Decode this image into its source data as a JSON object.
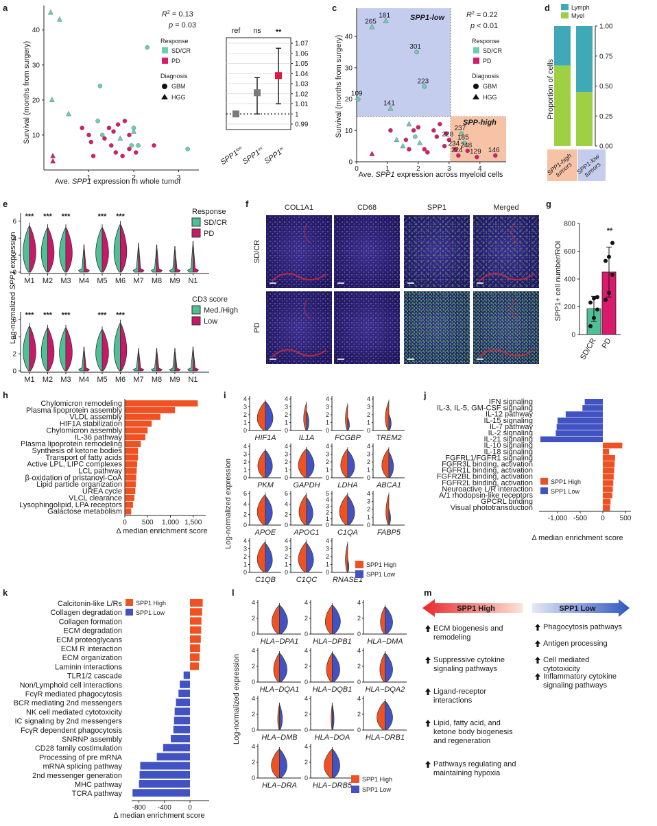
{
  "colors": {
    "sdcr": "#6ccfae",
    "pd": "#d81b6b",
    "high": "#f05123",
    "low": "#4153c3",
    "lymph": "#3fa9b8",
    "myel": "#9fcf42",
    "low_shade": "#c5cdee",
    "high_shade": "#f6c3a6",
    "violin_green": "#4fbf96",
    "violin_pink": "#c8186a"
  },
  "panel_a": {
    "letter": "a",
    "xlabel_pre": "Ave. ",
    "xlabel_gene": "SPP1",
    "xlabel_post": " expression in whole tumor",
    "ylabel": "Survival (months from surgery)",
    "r2": "R",
    "r2_val": " = 0.13",
    "p": "p",
    "p_val": " = 0.03",
    "xticks": [
      "1",
      "2",
      "3"
    ],
    "yticks": [
      "10",
      "20",
      "30",
      "40"
    ],
    "legend_response": "Response",
    "legend_sdcr": "SD/CR",
    "legend_pd": "PD",
    "legend_diagnosis": "Diagnosis",
    "legend_gbm": "GBM",
    "legend_hgg": "HGG",
    "points": [
      {
        "x": 0.15,
        "y": 45,
        "c": "sdcr",
        "s": "tri"
      },
      {
        "x": 0.35,
        "y": 43,
        "c": "sdcr",
        "s": "tri"
      },
      {
        "x": 0.18,
        "y": 20,
        "c": "sdcr",
        "s": "tri"
      },
      {
        "x": 0.55,
        "y": 16,
        "c": "sdcr",
        "s": "tri"
      },
      {
        "x": 0.2,
        "y": 4,
        "c": "pd",
        "s": "tri"
      },
      {
        "x": 0.2,
        "y": 2.5,
        "c": "pd",
        "s": "tri"
      },
      {
        "x": 0.85,
        "y": 12,
        "c": "pd",
        "s": "dot"
      },
      {
        "x": 1.0,
        "y": 10,
        "c": "pd",
        "s": "dot"
      },
      {
        "x": 1.05,
        "y": 8,
        "c": "pd",
        "s": "dot"
      },
      {
        "x": 1.1,
        "y": 4,
        "c": "pd",
        "s": "dot"
      },
      {
        "x": 1.2,
        "y": 14,
        "c": "sdcr",
        "s": "dot"
      },
      {
        "x": 1.25,
        "y": 24,
        "c": "sdcr",
        "s": "dot"
      },
      {
        "x": 1.3,
        "y": 10,
        "c": "sdcr",
        "s": "dot"
      },
      {
        "x": 1.35,
        "y": 9,
        "c": "pd",
        "s": "dot"
      },
      {
        "x": 1.45,
        "y": 12,
        "c": "pd",
        "s": "dot"
      },
      {
        "x": 1.5,
        "y": 7,
        "c": "pd",
        "s": "dot"
      },
      {
        "x": 1.55,
        "y": 11,
        "c": "pd",
        "s": "dot"
      },
      {
        "x": 1.6,
        "y": 5,
        "c": "pd",
        "s": "dot"
      },
      {
        "x": 1.65,
        "y": 13,
        "c": "pd",
        "s": "dot"
      },
      {
        "x": 1.7,
        "y": 9,
        "c": "sdcr",
        "s": "tri"
      },
      {
        "x": 1.75,
        "y": 4,
        "c": "pd",
        "s": "dot"
      },
      {
        "x": 1.8,
        "y": 14,
        "c": "pd",
        "s": "dot"
      },
      {
        "x": 1.9,
        "y": 10,
        "c": "pd",
        "s": "dot"
      },
      {
        "x": 1.95,
        "y": 7,
        "c": "sdcr",
        "s": "dot"
      },
      {
        "x": 2.0,
        "y": 11,
        "c": "sdcr",
        "s": "tri"
      },
      {
        "x": 2.05,
        "y": 5,
        "c": "pd",
        "s": "dot"
      },
      {
        "x": 2.1,
        "y": 7,
        "c": "sdcr",
        "s": "dot"
      },
      {
        "x": 2.3,
        "y": 35,
        "c": "sdcr",
        "s": "dot"
      },
      {
        "x": 2.45,
        "y": 7,
        "c": "pd",
        "s": "dot"
      },
      {
        "x": 1.9,
        "y": 6,
        "c": "pd",
        "s": "dot"
      },
      {
        "x": 3.2,
        "y": 6,
        "c": "sdcr",
        "s": "dot"
      },
      {
        "x": 2.0,
        "y": 12,
        "c": "sdcr",
        "s": "dot"
      }
    ]
  },
  "panel_a_or": {
    "labels": [
      "ref",
      "ns",
      "**"
    ],
    "yticks": [
      "0.99",
      "1",
      "1.01",
      "1.02",
      "1.03",
      "1.04",
      "1.05",
      "1.06",
      "1.07"
    ],
    "xlab1": "SPP1",
    "xlab1_sup": "low",
    "xlab2": "SPP1",
    "xlab2_sup": "int",
    "xlab3": "SPP1",
    "xlab3_sup": "hi",
    "estimates": [
      {
        "v": 1.0,
        "lo": 1.0,
        "hi": 1.0,
        "color": "#7a7a7a"
      },
      {
        "v": 1.021,
        "lo": 1.0,
        "hi": 1.036,
        "color": "#7a7a7a"
      },
      {
        "v": 1.038,
        "lo": 1.01,
        "hi": 1.065,
        "color": "#e0193d"
      }
    ]
  },
  "panel_c": {
    "letter": "c",
    "xlabel_pre": "Ave. ",
    "xlabel_gene": "SPP1",
    "xlabel_post": " expression across myeloid cells",
    "ylabel": "Survival (months from surgery)",
    "r2": "R",
    "r2_val": " = 0.22",
    "p": "p",
    "p_val": " < 0.01",
    "low_label": "SPP1-low",
    "high_label": "SPP-high",
    "xticks": [
      "0",
      "1",
      "2",
      "3",
      "4"
    ],
    "yticks": [
      "0",
      "10",
      "20",
      "30",
      "40"
    ],
    "legend_response": "Response",
    "legend_sdcr": "SD/CR",
    "legend_pd": "PD",
    "legend_diagnosis": "Diagnosis",
    "legend_gbm": "GBM",
    "legend_hgg": "HGG",
    "labeled": [
      {
        "x": 0.05,
        "y": 20,
        "t": "109",
        "c": "sdcr",
        "s": "dot"
      },
      {
        "x": 0.95,
        "y": 45,
        "t": "181",
        "c": "sdcr",
        "s": "tri"
      },
      {
        "x": 0.5,
        "y": 43,
        "t": "265",
        "c": "sdcr",
        "s": "tri"
      },
      {
        "x": 1.95,
        "y": 35,
        "t": "301",
        "c": "sdcr",
        "s": "dot"
      },
      {
        "x": 2.2,
        "y": 24,
        "t": "223",
        "c": "sdcr",
        "s": "dot"
      },
      {
        "x": 1.1,
        "y": 17,
        "t": "141",
        "c": "sdcr",
        "s": "tri"
      },
      {
        "x": 3.4,
        "y": 9,
        "t": "237",
        "c": "sdcr",
        "s": "dot"
      },
      {
        "x": 3.5,
        "y": 6,
        "t": "185",
        "c": "sdcr",
        "s": "dot"
      },
      {
        "x": 3.0,
        "y": 7,
        "t": "228",
        "c": "pd",
        "s": "dot"
      },
      {
        "x": 3.2,
        "y": 4,
        "t": "234",
        "c": "pd",
        "s": "dot"
      },
      {
        "x": 3.6,
        "y": 3.5,
        "t": "248",
        "c": "pd",
        "s": "dot"
      },
      {
        "x": 3.3,
        "y": 2,
        "t": "224",
        "c": "pd",
        "s": "dot"
      },
      {
        "x": 3.9,
        "y": 1.5,
        "t": "129",
        "c": "pd",
        "s": "dot"
      },
      {
        "x": 4.5,
        "y": 2,
        "t": "146",
        "c": "pd",
        "s": "dot"
      }
    ],
    "points": [
      {
        "x": 0.5,
        "y": 2.5,
        "c": "pd",
        "s": "tri"
      },
      {
        "x": 1.1,
        "y": 10,
        "c": "pd",
        "s": "dot"
      },
      {
        "x": 1.3,
        "y": 7,
        "c": "sdcr",
        "s": "tri"
      },
      {
        "x": 1.5,
        "y": 5,
        "c": "sdcr",
        "s": "tri"
      },
      {
        "x": 1.6,
        "y": 7,
        "c": "pd",
        "s": "dot"
      },
      {
        "x": 1.7,
        "y": 4,
        "c": "pd",
        "s": "dot"
      },
      {
        "x": 1.85,
        "y": 10,
        "c": "pd",
        "s": "dot"
      },
      {
        "x": 1.9,
        "y": 8,
        "c": "sdcr",
        "s": "dot"
      },
      {
        "x": 2.0,
        "y": 11,
        "c": "pd",
        "s": "dot"
      },
      {
        "x": 2.05,
        "y": 6,
        "c": "sdcr",
        "s": "tri"
      },
      {
        "x": 2.2,
        "y": 4,
        "c": "pd",
        "s": "dot"
      },
      {
        "x": 2.3,
        "y": 3,
        "c": "pd",
        "s": "dot"
      },
      {
        "x": 2.5,
        "y": 10,
        "c": "pd",
        "s": "dot"
      },
      {
        "x": 2.6,
        "y": 8,
        "c": "pd",
        "s": "dot"
      },
      {
        "x": 2.7,
        "y": 12,
        "c": "pd",
        "s": "dot"
      },
      {
        "x": 2.9,
        "y": 9,
        "c": "pd",
        "s": "dot"
      },
      {
        "x": 2.85,
        "y": 5,
        "c": "pd",
        "s": "dot"
      },
      {
        "x": 1.7,
        "y": 12,
        "c": "sdcr",
        "s": "tri"
      }
    ]
  },
  "panel_d": {
    "letter": "d",
    "ylabel": "Proportion of cells",
    "legend_lymph": "Lymph",
    "legend_myel": "Myel",
    "yticks": [
      "0.00",
      "0.25",
      "0.50",
      "0.75",
      "1.00"
    ],
    "cat1": "SPP1-high",
    "cat1b": "tumors",
    "cat2": "SPP1-low",
    "cat2b": "tumors",
    "myel_fraction": [
      0.67,
      0.45
    ]
  },
  "panel_e": {
    "letter": "e",
    "ylabel_pre": "Log-normalized ",
    "ylabel_gene": "SPP1",
    "ylabel_post": " expression",
    "clusters": [
      "M1",
      "M2",
      "M3",
      "M4",
      "M5",
      "M6",
      "M7",
      "M8",
      "M9",
      "N1"
    ],
    "yticks": [
      "0",
      "2",
      "4",
      "6"
    ],
    "legend1_title": "Response",
    "legend1_a": "SD/CR",
    "legend1_b": "PD",
    "legend2_title": "CD3 score",
    "legend2_a": "Med./High",
    "legend2_b": "Low",
    "stars": [
      "***",
      "***",
      "***",
      "",
      "***",
      "***",
      "",
      "",
      "",
      ""
    ],
    "heights_top": [
      5.8,
      5.6,
      5.6,
      3.2,
      5.6,
      6.0,
      3.4,
      3.2,
      3.0,
      3.6
    ],
    "heights_bottom": [
      5.6,
      5.4,
      5.4,
      2.8,
      5.2,
      6.0,
      2.6,
      2.6,
      2.6,
      2.8
    ]
  },
  "panel_f": {
    "letter": "f",
    "columns": [
      "COL1A1",
      "CD68",
      "SPP1",
      "Merged"
    ],
    "rows": [
      "SD/CR",
      "PD"
    ]
  },
  "panel_g": {
    "letter": "g",
    "ylabel": "SPP1+ cell number/ROI",
    "yticks": [
      "0",
      "200",
      "400",
      "600",
      "800"
    ],
    "cats": [
      "SD/CR",
      "PD"
    ],
    "values": [
      185,
      450
    ],
    "err": [
      90,
      180
    ],
    "sig": "**"
  },
  "panel_h": {
    "letter": "h",
    "xlabel": "Δ median enrichment score",
    "xticks": [
      "0",
      "500",
      "1,000",
      "1,500"
    ],
    "items": [
      {
        "label": "Chylomicron remodeling",
        "v": 1600
      },
      {
        "label": "Plasma lipoprotein assembly",
        "v": 1100
      },
      {
        "label": "VLDL assembly",
        "v": 780
      },
      {
        "label": "HIF1A stabilization",
        "v": 590
      },
      {
        "label": "Chylomicron assembly",
        "v": 500
      },
      {
        "label": "IL-36 pathway",
        "v": 450
      },
      {
        "label": "Plasma lipoprotein remodeling",
        "v": 350
      },
      {
        "label": "Synthesis of ketone bodies",
        "v": 290
      },
      {
        "label": "Transport of fatty acids",
        "v": 290
      },
      {
        "label": "Active LPL, LIPC complexes",
        "v": 270
      },
      {
        "label": "LCL pathway",
        "v": 260
      },
      {
        "label": "β-oxidation of pristanoyl-CoA",
        "v": 250
      },
      {
        "label": "Lipid particle organization",
        "v": 240
      },
      {
        "label": "UREA cycle",
        "v": 230
      },
      {
        "label": "VLCL clearance",
        "v": 210
      },
      {
        "label": "Lysophingolipid, LPA receptors",
        "v": 180
      },
      {
        "label": "Galactose metabolism",
        "v": 140
      }
    ]
  },
  "panel_i": {
    "letter": "i",
    "ylabel": "Log-normalized expression",
    "genes": [
      "HIF1A",
      "IL1A",
      "FCGBP",
      "TREM2",
      "PKM",
      "GAPDH",
      "LDHA",
      "ABCA1",
      "APOE",
      "APOC1",
      "C1QA",
      "FABP5",
      "C1QB",
      "C1QC",
      "RNASE1"
    ],
    "legend_high": "SPP1 High",
    "legend_low": "SPP1 Low",
    "yticks": [
      "0",
      "1",
      "2",
      "3",
      "4"
    ],
    "yticks6": [
      "0",
      "2",
      "4",
      "6"
    ],
    "yticks5": [
      "0",
      "1",
      "2",
      "3",
      "4",
      "5"
    ]
  },
  "panel_j": {
    "letter": "j",
    "xlabel": "Δ median enrichment score",
    "xticks": [
      "-1,000",
      "-500",
      "0",
      "500"
    ],
    "legend_high": "SPP1 High",
    "legend_low": "SPP1 Low",
    "items": [
      {
        "label": "IFN signaling",
        "v": -400
      },
      {
        "label": "IL-3, IL-5, GM-CSF signaling",
        "v": -450
      },
      {
        "label": "IL-12 pathway",
        "v": -820
      },
      {
        "label": "IL-15 signaling",
        "v": -1000
      },
      {
        "label": "IL-7 pathway",
        "v": -1020
      },
      {
        "label": "IL-2 signaling",
        "v": -1040
      },
      {
        "label": "IL-21 signaling",
        "v": -1380
      },
      {
        "label": "IL-10 signaling",
        "v": 430
      },
      {
        "label": "IL-18 signaling",
        "v": 140
      },
      {
        "label": "FGFRL1/FGFR1 signaling",
        "v": 270
      },
      {
        "label": "FGFR3L binding, activation",
        "v": 260
      },
      {
        "label": "FGFR1L binding, activation",
        "v": 250
      },
      {
        "label": "FGFR2BL binding, activation",
        "v": 240
      },
      {
        "label": "FGFR2L binding, activation",
        "v": 230
      },
      {
        "label": "Neuroactive L/R interaction",
        "v": 220
      },
      {
        "label": "A/1 rhodopsin-like receptors",
        "v": 210
      },
      {
        "label": "GPCRL binding",
        "v": 170
      },
      {
        "label": "Visual phototransduction",
        "v": 160
      }
    ]
  },
  "panel_k": {
    "letter": "k",
    "xlabel": "Δ median enrichment score",
    "xticks": [
      "-800",
      "-400",
      "0"
    ],
    "legend_high": "SPP1 High",
    "legend_low": "SPP1 Low",
    "items": [
      {
        "label": "Calcitonin-like L/Rs",
        "v": 200
      },
      {
        "label": "Collagen degradation",
        "v": 190
      },
      {
        "label": "Collagen formation",
        "v": 180
      },
      {
        "label": "ECM degradation",
        "v": 175
      },
      {
        "label": "ECM proteoglycans",
        "v": 170
      },
      {
        "label": "ECM R interaction",
        "v": 160
      },
      {
        "label": "ECM organization",
        "v": 150
      },
      {
        "label": "Laminin interactions",
        "v": 140
      },
      {
        "label": "TLR1/2 cascade",
        "v": -100
      },
      {
        "label": "Non/Lymphoid cell interactions",
        "v": -160
      },
      {
        "label": "FcγR mediated phagocytosis",
        "v": -180
      },
      {
        "label": "BCR mediating 2nd messengers",
        "v": -220
      },
      {
        "label": "NK cell mediated cytotoxicity",
        "v": -240
      },
      {
        "label": "IC signaling by 2nd messengers",
        "v": -250
      },
      {
        "label": "FcγR dependent phagocytosis",
        "v": -260
      },
      {
        "label": "SNRNP assembly",
        "v": -300
      },
      {
        "label": "CD28 family costimulation",
        "v": -420
      },
      {
        "label": "Processing of pre mRNA",
        "v": -520
      },
      {
        "label": "mRNA splicing pathway",
        "v": -780
      },
      {
        "label": "2nd messenger generation",
        "v": -790
      },
      {
        "label": "MHC pathway",
        "v": -800
      },
      {
        "label": "TCRA pathway",
        "v": -900
      }
    ]
  },
  "panel_l": {
    "letter": "l",
    "ylabel": "Log-normalized expression",
    "genes": [
      "HLA−DPA1",
      "HLA−DPB1",
      "HLA−DMA",
      "HLA−DQA1",
      "HLA−DQB1",
      "HLA−DQA2",
      "HLA−DMB",
      "HLA−DOA",
      "HLA−DRB1",
      "HLA−DRA",
      "HLA−DRB5"
    ],
    "legend_high": "SPP1 High",
    "legend_low": "SPP1 Low",
    "yticks": [
      "0",
      "2",
      "4"
    ]
  },
  "panel_m": {
    "letter": "m",
    "high_title": "SPP1 High",
    "low_title": "SPP1 Low",
    "high_items": [
      "ECM biogenesis and remodeling",
      "Suppressive cytokine signaling pathways",
      "Ligand-receptor interactions",
      "Lipid, fatty acid, and ketone body biogenesis and regeneration",
      "Pathways regulating and maintaining hypoxia"
    ],
    "low_items": [
      "Phagocytosis pathways",
      "Antigen processing",
      "Cell mediated cytotoxicity",
      "Inflammatory cytokine signaling pathways"
    ]
  }
}
